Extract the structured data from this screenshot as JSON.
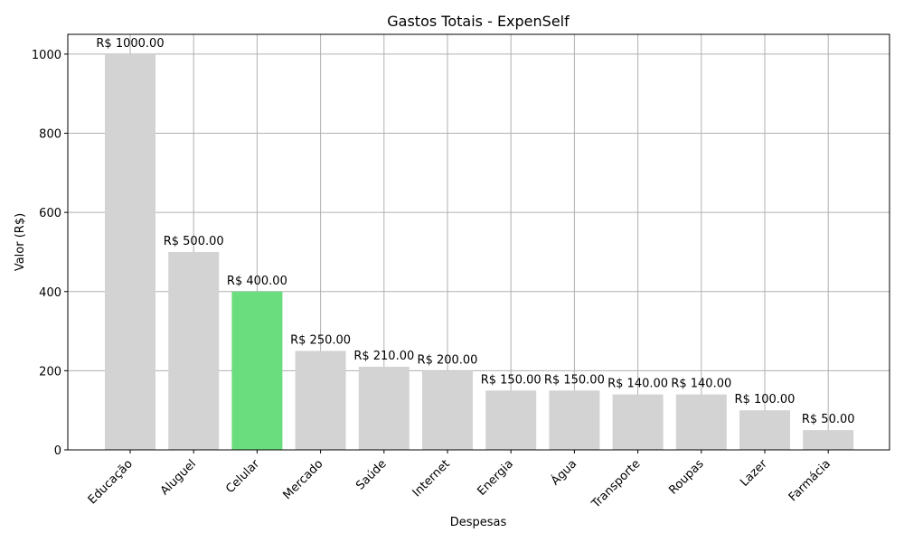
{
  "chart_data": {
    "type": "bar",
    "title": "Gastos Totais - ExpenSelf",
    "xlabel": "Despesas",
    "ylabel": "Valor (R$)",
    "categories": [
      "Educação",
      "Aluguel",
      "Celular",
      "Mercado",
      "Saúde",
      "Internet",
      "Energia",
      "Água",
      "Transporte",
      "Roupas",
      "Lazer",
      "Farmácia"
    ],
    "values": [
      1000,
      500,
      400,
      250,
      210,
      200,
      150,
      150,
      140,
      140,
      100,
      50
    ],
    "data_labels": [
      "R$ 1000.00",
      "R$ 500.00",
      "R$ 400.00",
      "R$ 250.00",
      "R$ 210.00",
      "R$ 200.00",
      "R$ 150.00",
      "R$ 150.00",
      "R$ 140.00",
      "R$ 140.00",
      "R$ 100.00",
      "R$ 50.00"
    ],
    "highlighted_category": "Celular",
    "colors": {
      "default": "#d3d3d3",
      "highlight": "#6add7e"
    },
    "ylim": [
      0,
      1050
    ],
    "yticks": [
      0,
      200,
      400,
      600,
      800,
      1000
    ],
    "grid": true
  }
}
